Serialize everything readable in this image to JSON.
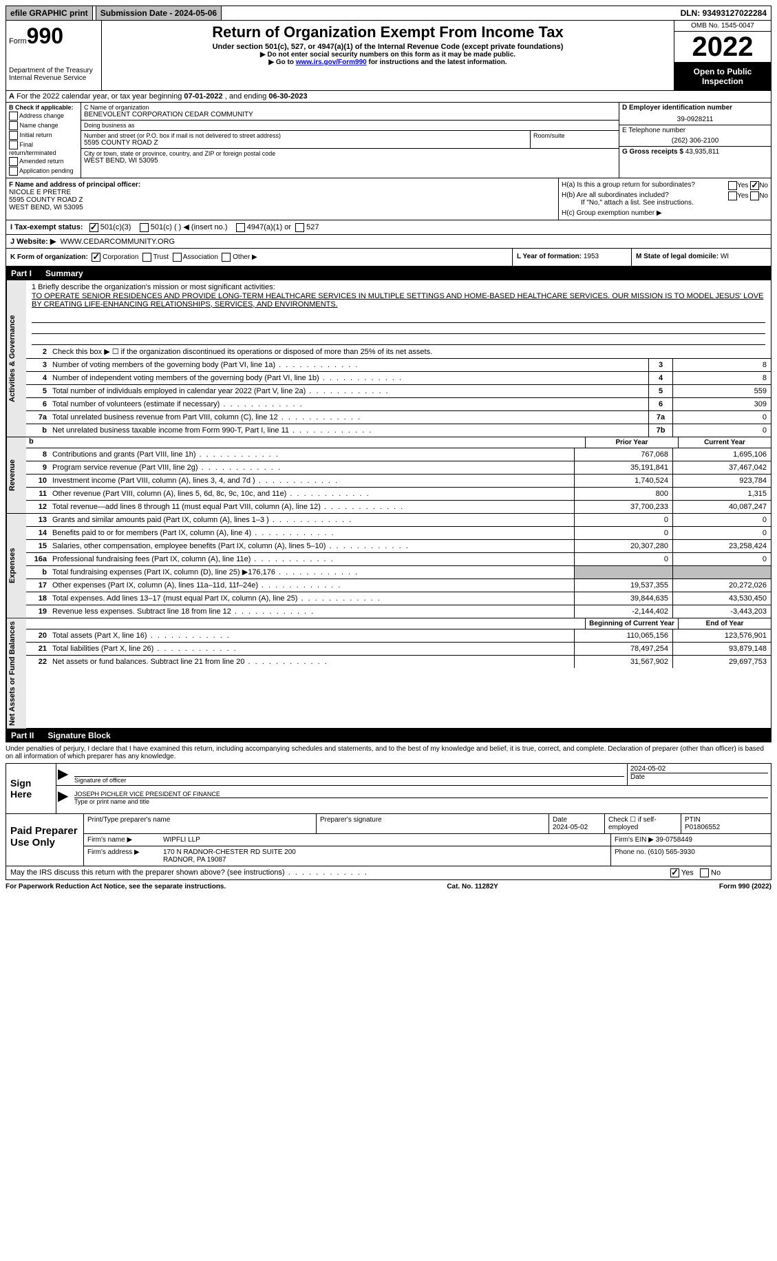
{
  "topbar": {
    "efile": "efile GRAPHIC print",
    "submission": "Submission Date - 2024-05-06",
    "dln": "DLN: 93493127022284"
  },
  "header": {
    "form_word": "Form",
    "form_num": "990",
    "dept": "Department of the Treasury",
    "irs": "Internal Revenue Service",
    "title": "Return of Organization Exempt From Income Tax",
    "sub1": "Under section 501(c), 527, or 4947(a)(1) of the Internal Revenue Code (except private foundations)",
    "sub2": "▶ Do not enter social security numbers on this form as it may be made public.",
    "sub3_pre": "▶ Go to ",
    "sub3_link": "www.irs.gov/Form990",
    "sub3_post": " for instructions and the latest information.",
    "omb": "OMB No. 1545-0047",
    "year": "2022",
    "open": "Open to Public Inspection"
  },
  "row_a": {
    "label": "A",
    "text_pre": "For the 2022 calendar year, or tax year beginning ",
    "begin": "07-01-2022",
    "mid": " , and ending ",
    "end": "06-30-2023"
  },
  "col_b": {
    "label": "B Check if applicable:",
    "items": [
      "Address change",
      "Name change",
      "Initial return",
      "Final return/terminated",
      "Amended return",
      "Application pending"
    ]
  },
  "col_c": {
    "name_label": "C Name of organization",
    "name": "BENEVOLENT CORPORATION CEDAR COMMUNITY",
    "dba_label": "Doing business as",
    "dba": "",
    "street_label": "Number and street (or P.O. box if mail is not delivered to street address)",
    "street": "5595 COUNTY ROAD Z",
    "room_label": "Room/suite",
    "city_label": "City or town, state or province, country, and ZIP or foreign postal code",
    "city": "WEST BEND, WI  53095"
  },
  "col_d": {
    "d_label": "D Employer identification number",
    "ein": "39-0928211",
    "e_label": "E Telephone number",
    "phone": "(262) 306-2100",
    "g_label": "G Gross receipts $",
    "gross": "43,935,811"
  },
  "row_f": {
    "label": "F Name and address of principal officer:",
    "name": "NICOLE E PRETRE",
    "street": "5595 COUNTY ROAD Z",
    "city": "WEST BEND, WI  53095"
  },
  "row_h": {
    "ha": "H(a) Is this a group return for subordinates?",
    "hb": "H(b) Are all subordinates included?",
    "hb_note": "If \"No,\" attach a list. See instructions.",
    "hc": "H(c) Group exemption number ▶",
    "yes": "Yes",
    "no": "No"
  },
  "row_i": {
    "label": "I Tax-exempt status:",
    "o501c3": "501(c)(3)",
    "o501c": "501(c) (  ) ◀ (insert no.)",
    "o4947": "4947(a)(1) or",
    "o527": "527"
  },
  "row_j": {
    "label": "J Website: ▶",
    "value": "WWW.CEDARCOMMUNITY.ORG"
  },
  "row_k": {
    "label": "K Form of organization:",
    "corp": "Corporation",
    "trust": "Trust",
    "assoc": "Association",
    "other": "Other ▶"
  },
  "row_l": {
    "label": "L Year of formation:",
    "value": "1953"
  },
  "row_m": {
    "label": "M State of legal domicile:",
    "value": "WI"
  },
  "part1": {
    "label": "Part I",
    "title": "Summary"
  },
  "mission": {
    "q": "1  Briefly describe the organization's mission or most significant activities:",
    "text": "TO OPERATE SENIOR RESIDENCES AND PROVIDE LONG-TERM HEALTHCARE SERVICES IN MULTIPLE SETTINGS AND HOME-BASED HEALTHCARE SERVICES. OUR MISSION IS TO MODEL JESUS' LOVE BY CREATING LIFE-ENHANCING RELATIONSHIPS, SERVICES, AND ENVIRONMENTS."
  },
  "activities_lines": [
    {
      "n": "2",
      "t": "Check this box ▶ ☐ if the organization discontinued its operations or disposed of more than 25% of its net assets.",
      "box": "",
      "v": ""
    },
    {
      "n": "3",
      "t": "Number of voting members of the governing body (Part VI, line 1a)",
      "box": "3",
      "v": "8"
    },
    {
      "n": "4",
      "t": "Number of independent voting members of the governing body (Part VI, line 1b)",
      "box": "4",
      "v": "8"
    },
    {
      "n": "5",
      "t": "Total number of individuals employed in calendar year 2022 (Part V, line 2a)",
      "box": "5",
      "v": "559"
    },
    {
      "n": "6",
      "t": "Total number of volunteers (estimate if necessary)",
      "box": "6",
      "v": "309"
    },
    {
      "n": "7a",
      "t": "Total unrelated business revenue from Part VIII, column (C), line 12",
      "box": "7a",
      "v": "0"
    },
    {
      "n": "b",
      "t": "Net unrelated business taxable income from Form 990-T, Part I, line 11",
      "box": "7b",
      "v": "0"
    }
  ],
  "col_headers": {
    "prior": "Prior Year",
    "current": "Current Year",
    "bcy": "Beginning of Current Year",
    "eoy": "End of Year"
  },
  "revenue_lines": [
    {
      "n": "8",
      "t": "Contributions and grants (Part VIII, line 1h)",
      "p": "767,068",
      "c": "1,695,106"
    },
    {
      "n": "9",
      "t": "Program service revenue (Part VIII, line 2g)",
      "p": "35,191,841",
      "c": "37,467,042"
    },
    {
      "n": "10",
      "t": "Investment income (Part VIII, column (A), lines 3, 4, and 7d )",
      "p": "1,740,524",
      "c": "923,784"
    },
    {
      "n": "11",
      "t": "Other revenue (Part VIII, column (A), lines 5, 6d, 8c, 9c, 10c, and 11e)",
      "p": "800",
      "c": "1,315"
    },
    {
      "n": "12",
      "t": "Total revenue—add lines 8 through 11 (must equal Part VIII, column (A), line 12)",
      "p": "37,700,233",
      "c": "40,087,247"
    }
  ],
  "expense_lines": [
    {
      "n": "13",
      "t": "Grants and similar amounts paid (Part IX, column (A), lines 1–3 )",
      "p": "0",
      "c": "0"
    },
    {
      "n": "14",
      "t": "Benefits paid to or for members (Part IX, column (A), line 4)",
      "p": "0",
      "c": "0"
    },
    {
      "n": "15",
      "t": "Salaries, other compensation, employee benefits (Part IX, column (A), lines 5–10)",
      "p": "20,307,280",
      "c": "23,258,424"
    },
    {
      "n": "16a",
      "t": "Professional fundraising fees (Part IX, column (A), line 11e)",
      "p": "0",
      "c": "0"
    },
    {
      "n": "b",
      "t": "Total fundraising expenses (Part IX, column (D), line 25) ▶176,176",
      "p": "",
      "c": "",
      "shaded": true
    },
    {
      "n": "17",
      "t": "Other expenses (Part IX, column (A), lines 11a–11d, 11f–24e)",
      "p": "19,537,355",
      "c": "20,272,026"
    },
    {
      "n": "18",
      "t": "Total expenses. Add lines 13–17 (must equal Part IX, column (A), line 25)",
      "p": "39,844,635",
      "c": "43,530,450"
    },
    {
      "n": "19",
      "t": "Revenue less expenses. Subtract line 18 from line 12",
      "p": "-2,144,402",
      "c": "-3,443,203"
    }
  ],
  "netassets_lines": [
    {
      "n": "20",
      "t": "Total assets (Part X, line 16)",
      "p": "110,065,156",
      "c": "123,576,901"
    },
    {
      "n": "21",
      "t": "Total liabilities (Part X, line 26)",
      "p": "78,497,254",
      "c": "93,879,148"
    },
    {
      "n": "22",
      "t": "Net assets or fund balances. Subtract line 21 from line 20",
      "p": "31,567,902",
      "c": "29,697,753"
    }
  ],
  "side_labels": {
    "ag": "Activities & Governance",
    "rev": "Revenue",
    "exp": "Expenses",
    "na": "Net Assets or Fund Balances"
  },
  "part2": {
    "label": "Part II",
    "title": "Signature Block"
  },
  "penalties": "Under penalties of perjury, I declare that I have examined this return, including accompanying schedules and statements, and to the best of my knowledge and belief, it is true, correct, and complete. Declaration of preparer (other than officer) is based on all information of which preparer has any knowledge.",
  "sign": {
    "here": "Sign Here",
    "sig_label": "Signature of officer",
    "date": "2024-05-02",
    "date_label": "Date",
    "name": "JOSEPH PICHLER  VICE PRESIDENT OF FINANCE",
    "name_label": "Type or print name and title"
  },
  "preparer": {
    "title": "Paid Preparer Use Only",
    "print_label": "Print/Type preparer's name",
    "sig_label": "Preparer's signature",
    "date_label": "Date",
    "date": "2024-05-02",
    "check_label": "Check ☐ if self-employed",
    "ptin_label": "PTIN",
    "ptin": "P01806552",
    "firm_name_label": "Firm's name    ▶",
    "firm_name": "WIPFLI LLP",
    "firm_ein_label": "Firm's EIN ▶",
    "firm_ein": "39-0758449",
    "firm_addr_label": "Firm's address ▶",
    "firm_addr1": "170 N RADNOR-CHESTER RD SUITE 200",
    "firm_addr2": "RADNOR, PA  19087",
    "phone_label": "Phone no.",
    "phone": "(610) 565-3930"
  },
  "discuss": {
    "text": "May the IRS discuss this return with the preparer shown above? (see instructions)",
    "yes": "Yes",
    "no": "No"
  },
  "footer": {
    "left": "For Paperwork Reduction Act Notice, see the separate instructions.",
    "mid": "Cat. No. 11282Y",
    "right": "Form 990 (2022)"
  }
}
